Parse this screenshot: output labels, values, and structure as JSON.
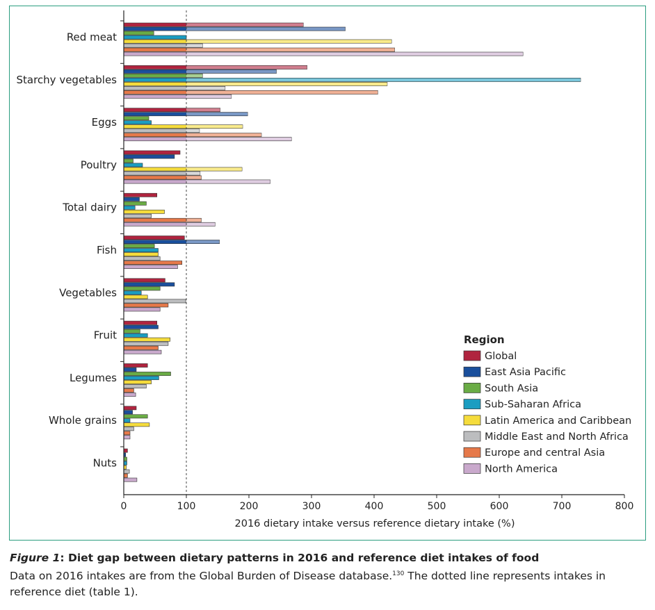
{
  "chart_data": {
    "type": "bar",
    "orientation": "horizontal",
    "xlabel": "2016 dietary intake versus reference dietary intake (%)",
    "ylabel": "",
    "xlim": [
      0,
      800
    ],
    "xticks": [
      0,
      100,
      200,
      300,
      400,
      500,
      600,
      700,
      800
    ],
    "reference_line": 100,
    "grid": false,
    "legend_title": "Region",
    "legend_position": "lower-right",
    "categories": [
      "Red meat",
      "Starchy vegetables",
      "Eggs",
      "Poultry",
      "Total dairy",
      "Fish",
      "Vegetables",
      "Fruit",
      "Legumes",
      "Whole grains",
      "Nuts"
    ],
    "series": [
      {
        "name": "Global",
        "color": "#b0243f",
        "values": [
          287,
          293,
          154,
          90,
          53,
          97,
          66,
          53,
          38,
          20,
          6
        ]
      },
      {
        "name": "East Asia Pacific",
        "color": "#1a4f9c",
        "values": [
          354,
          244,
          198,
          81,
          25,
          153,
          81,
          55,
          20,
          14,
          3
        ]
      },
      {
        "name": "South Asia",
        "color": "#6aac45",
        "values": [
          48,
          126,
          40,
          15,
          36,
          49,
          58,
          26,
          75,
          38,
          5
        ]
      },
      {
        "name": "Sub-Saharan Africa",
        "color": "#1b9dc1",
        "values": [
          100,
          730,
          44,
          30,
          18,
          55,
          28,
          38,
          56,
          10,
          5
        ]
      },
      {
        "name": "Latin America and Caribbean",
        "color": "#f5dc3c",
        "values": [
          428,
          421,
          190,
          189,
          65,
          55,
          38,
          74,
          44,
          41,
          4
        ]
      },
      {
        "name": "Middle East and North Africa",
        "color": "#bcbdbf",
        "values": [
          126,
          162,
          121,
          122,
          44,
          58,
          99,
          71,
          36,
          16,
          9
        ]
      },
      {
        "name": "Europe and central  Asia",
        "color": "#e6794a",
        "values": [
          433,
          406,
          220,
          124,
          124,
          93,
          71,
          55,
          16,
          10,
          6
        ]
      },
      {
        "name": "North America",
        "color": "#c9a9cc",
        "values": [
          638,
          172,
          268,
          234,
          146,
          86,
          58,
          60,
          19,
          10,
          21
        ]
      }
    ]
  },
  "caption": {
    "figure_label": "Figure 1",
    "title": ": Diet gap between dietary patterns in 2016 and reference diet intakes of food",
    "line2_text": "Data on 2016 intakes are from the Global Burden of Disease database.",
    "line2_ref": "130",
    "line2_tail": " The dotted line represents intakes in",
    "line3_text": "reference diet (table 1)."
  }
}
